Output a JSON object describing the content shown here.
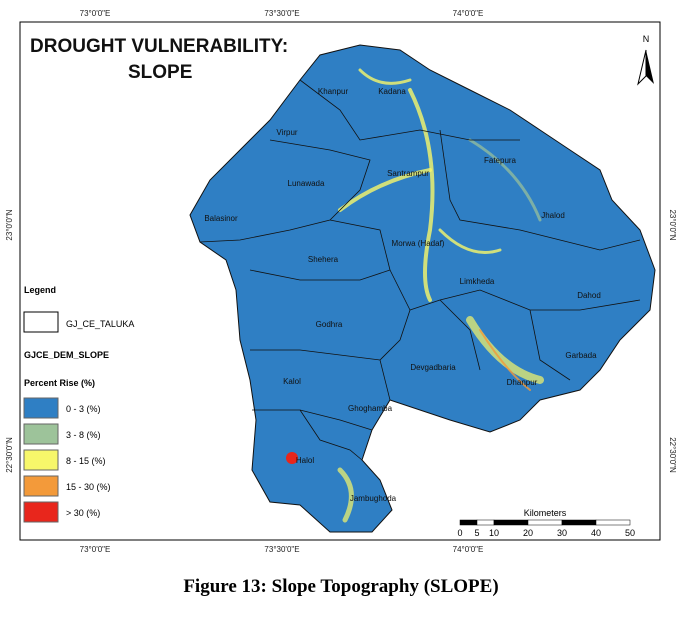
{
  "map": {
    "title": [
      "DROUGHT VULNERABILITY:",
      "SLOPE"
    ],
    "north": "N",
    "top_labels": [
      "73°0'0\"E",
      "73°30'0\"E",
      "74°0'0\"E"
    ],
    "bottom_labels": [
      "73°0'0\"E",
      "73°30'0\"E",
      "74°0'0\"E"
    ],
    "left_labels": [
      "23°0'0\"N",
      "22°30'0\"N"
    ],
    "right_labels": [
      "23°0'0\"N",
      "22°30'0\"N"
    ],
    "talukas": [
      "Khanpur",
      "Kadana",
      "Virpur",
      "Fatepura",
      "Santrampur",
      "Lunawada",
      "Jhalod",
      "Balasinor",
      "Morwa (Hadaf)",
      "Shehera",
      "Limkheda",
      "Dahod",
      "Godhra",
      "Garbada",
      "Devgadbaria",
      "Dhanpur",
      "Kalol",
      "Ghoghamba",
      "Halol",
      "Jambughoda"
    ],
    "legend": {
      "title": "Legend",
      "boundary": "GJ_CE_TALUKA",
      "layer": "GJCE_DEM_SLOPE",
      "unit": "Percent Rise (%)",
      "classes": [
        {
          "label": "0 - 3 (%)",
          "color": "#2f7fc4"
        },
        {
          "label": "3 - 8 (%)",
          "color": "#9dc39a"
        },
        {
          "label": "8 - 15 (%)",
          "color": "#f7f76a"
        },
        {
          "label": "15 - 30 (%)",
          "color": "#f39a3a"
        },
        {
          "label": "> 30 (%)",
          "color": "#e8261c"
        }
      ]
    },
    "scale": {
      "title": "Kilometers",
      "ticks": [
        "0",
        "5",
        "10",
        "20",
        "30",
        "40",
        "50"
      ]
    },
    "caption": "Figure 13: Slope Topography (SLOPE)"
  }
}
